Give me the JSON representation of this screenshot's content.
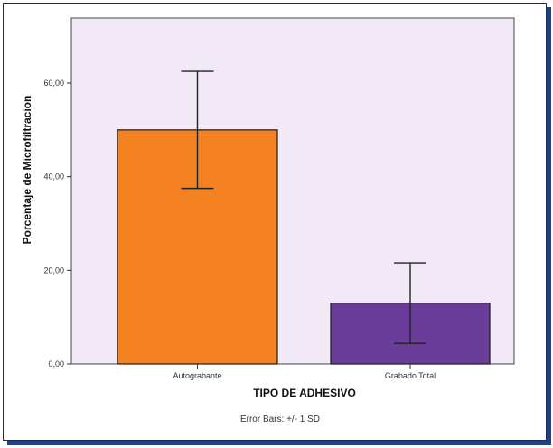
{
  "chart_data": {
    "type": "bar",
    "categories": [
      "Autograbante",
      "Grabado Total"
    ],
    "values": [
      50,
      13
    ],
    "error_sd": [
      12.5,
      8.6
    ],
    "xlabel": "TIPO DE ADHESIVO",
    "ylabel": "Porcentaje de Microfiltracion",
    "ylim": [
      0,
      60
    ],
    "yticks": [
      "0,00",
      "20,00",
      "40,00",
      "60,00"
    ],
    "ytick_values": [
      0,
      20,
      40,
      60
    ],
    "note": "Error Bars: +/- 1 SD",
    "colors": {
      "plot_background": "#f1e9f6",
      "bars": [
        "#f58220",
        "#6a3d9a"
      ],
      "bar_edge": "#1a1a1a"
    },
    "grid": false
  }
}
